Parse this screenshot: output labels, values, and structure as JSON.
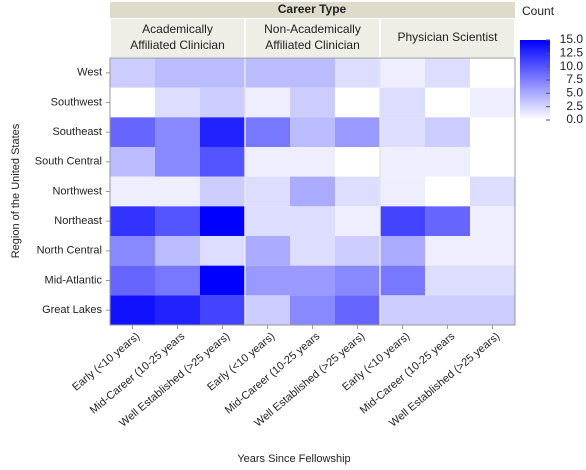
{
  "chart_data": {
    "type": "heatmap",
    "group_title": "Career Type",
    "groups": [
      [
        "Academically",
        "Affiliated Clinician"
      ],
      [
        "Non-Academically",
        "Affiliated Clinician"
      ],
      [
        "Physician Scientist"
      ]
    ],
    "x_categories": [
      "Early (<10 years)",
      "Mid-Career (10-25 years",
      "Well Established (>25 years)",
      "Early (<10 years)",
      "Mid-Career (10-25 years",
      "Well Established (>25 years)",
      "Early (<10 years)",
      "Mid-Career (10-25 years",
      "Well Established (>25 years)"
    ],
    "y_categories": [
      "West",
      "Southwest",
      "Southeast",
      "South Central",
      "Northwest",
      "Northeast",
      "North Central",
      "Mid-Atlantic",
      "Great Lakes"
    ],
    "values": [
      [
        3,
        4,
        4,
        4,
        4,
        2,
        1,
        2,
        0
      ],
      [
        0,
        2,
        3,
        1,
        3,
        0,
        2,
        0,
        1
      ],
      [
        9,
        7,
        13,
        8,
        4,
        6,
        2,
        3,
        0
      ],
      [
        4,
        7,
        10,
        1,
        1,
        0,
        1,
        1,
        0
      ],
      [
        1,
        1,
        3,
        2,
        5,
        2,
        1,
        0,
        2
      ],
      [
        12,
        10,
        15,
        2,
        2,
        1,
        11,
        9,
        1
      ],
      [
        7,
        4,
        2,
        5,
        2,
        3,
        5,
        1,
        1
      ],
      [
        9,
        8,
        15,
        6,
        6,
        7,
        8,
        2,
        2
      ],
      [
        14,
        13,
        11,
        3,
        7,
        9,
        3,
        3,
        3
      ]
    ],
    "xlabel": "Years Since Fellowship",
    "ylabel": "Region of the United States",
    "legend_title": "Count",
    "colorscale": [
      "#ffffff",
      "#0000ff"
    ],
    "zlim": [
      0,
      15
    ],
    "zticks": [
      {
        "value": 15,
        "label": "15.0"
      },
      {
        "value": 12.5,
        "label": "12.5"
      },
      {
        "value": 10,
        "label": "10.0"
      },
      {
        "value": 7.5,
        "label": "7.5"
      },
      {
        "value": 5,
        "label": "5.0"
      },
      {
        "value": 2.5,
        "label": "2.5"
      },
      {
        "value": 0,
        "label": "0.0"
      }
    ]
  }
}
